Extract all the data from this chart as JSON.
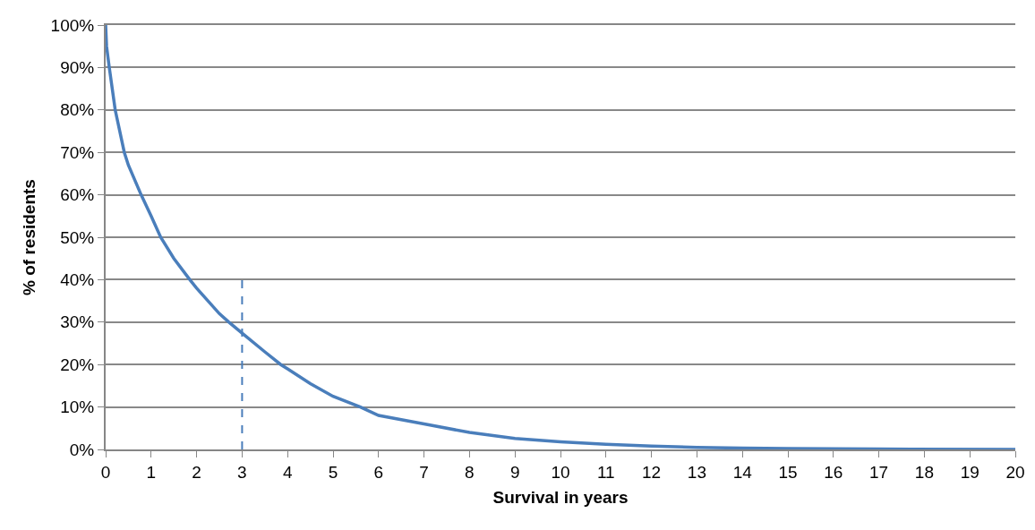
{
  "chart_data": {
    "type": "line",
    "xlabel": "Survival in years",
    "ylabel": "% of residents",
    "xlim": [
      0,
      20
    ],
    "xticks": [
      0,
      1,
      2,
      3,
      4,
      5,
      6,
      7,
      8,
      9,
      10,
      11,
      12,
      13,
      14,
      15,
      16,
      17,
      18,
      19,
      20
    ],
    "ylim": [
      0,
      100
    ],
    "yticks": [
      {
        "value": 0,
        "label": "0%"
      },
      {
        "value": 10,
        "label": "10%"
      },
      {
        "value": 20,
        "label": "20%"
      },
      {
        "value": 30,
        "label": "30%"
      },
      {
        "value": 40,
        "label": "40%"
      },
      {
        "value": 50,
        "label": "50%"
      },
      {
        "value": 60,
        "label": "60%"
      },
      {
        "value": 70,
        "label": "70%"
      },
      {
        "value": 80,
        "label": "80%"
      },
      {
        "value": 90,
        "label": "90%"
      },
      {
        "value": 100,
        "label": "100%"
      }
    ],
    "grid": "y",
    "marker": "none",
    "series": [
      {
        "color": "#4a7ebb",
        "line_style": "solid",
        "x": [
          0,
          0.02,
          0.08,
          0.21,
          0.41,
          0.5,
          0.78,
          1,
          1.21,
          1.5,
          1.85,
          2,
          2.5,
          2.71,
          3,
          3.5,
          3.85,
          4,
          4.5,
          5,
          5.6,
          6,
          7,
          8,
          9,
          10,
          11,
          12,
          13,
          14,
          15,
          17,
          20
        ],
        "values": [
          100,
          95,
          90,
          80,
          70,
          67,
          60,
          55,
          50,
          45,
          40,
          38,
          32,
          30,
          27.4,
          23,
          20,
          19,
          15.5,
          12.5,
          10,
          8,
          6,
          4,
          2.6,
          1.8,
          1.2,
          0.8,
          0.5,
          0.3,
          0.2,
          0.1,
          0
        ]
      },
      {
        "color": "#4a7ebb",
        "line_style": "dashed",
        "x": [
          3,
          3
        ],
        "values": [
          0,
          40
        ]
      }
    ]
  }
}
